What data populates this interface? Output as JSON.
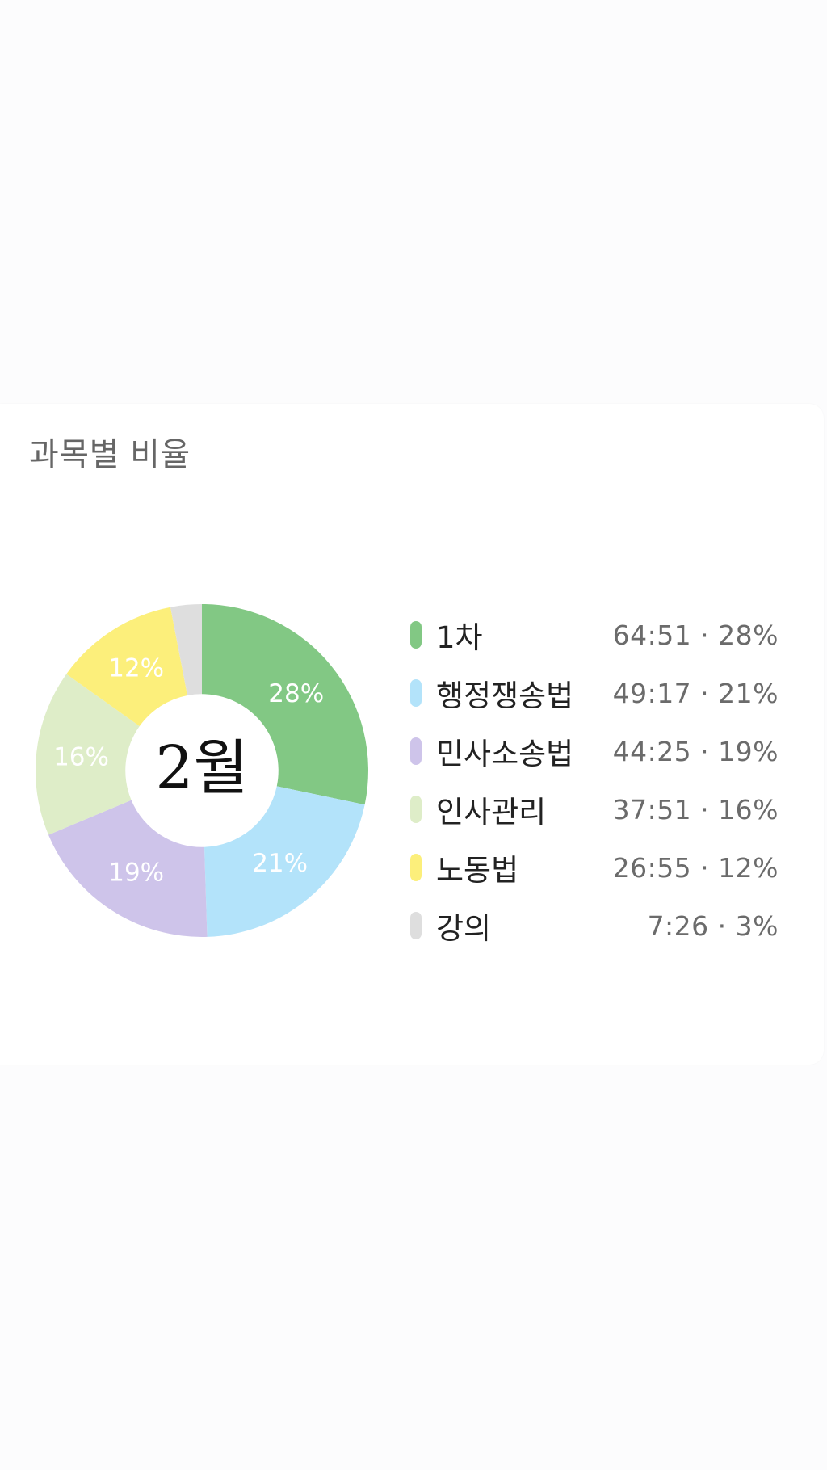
{
  "card": {
    "title": "과목별 비율"
  },
  "chart_data": {
    "type": "pie",
    "center_label": "2월",
    "slices": [
      {
        "name": "1차",
        "value": 28,
        "time": "64:51",
        "percent_label": "28%",
        "color": "#82c884"
      },
      {
        "name": "행정쟁송법",
        "value": 21,
        "time": "49:17",
        "percent_label": "21%",
        "color": "#b3e3fa"
      },
      {
        "name": "민사소송법",
        "value": 19,
        "time": "44:25",
        "percent_label": "19%",
        "color": "#cec4ea"
      },
      {
        "name": "인사관리",
        "value": 16,
        "time": "37:51",
        "percent_label": "16%",
        "color": "#deedc8"
      },
      {
        "name": "노동법",
        "value": 12,
        "time": "26:55",
        "percent_label": "12%",
        "color": "#fcef7b"
      },
      {
        "name": "강의",
        "value": 3,
        "time": "7:26",
        "percent_label": "3%",
        "color": "#dedede"
      }
    ],
    "legend_values": [
      "64:51 · 28%",
      "49:17 · 21%",
      "44:25 · 19%",
      "37:51 · 16%",
      "26:55 · 12%",
      "7:26 · 3%"
    ],
    "inner_radius_ratio": 0.46,
    "start_angle": "top",
    "direction": "clockwise",
    "legend_position": "right"
  }
}
